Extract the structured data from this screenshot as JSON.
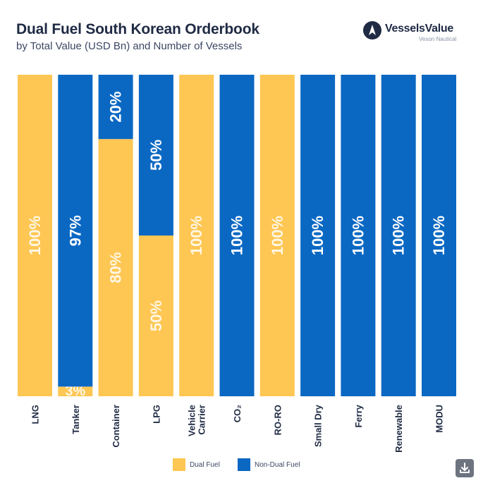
{
  "header": {
    "title": "Dual Fuel South Korean Orderbook",
    "subtitle": "by Total Value (USD Bn) and Number of Vessels"
  },
  "logo": {
    "name": "VesselsValue",
    "sub": "Veson Nautical"
  },
  "colors": {
    "dual_fuel": "#FEC653",
    "non_dual_fuel": "#0A68C3",
    "label_on_dual": "#FFF7E4",
    "label_on_non_dual": "#FFFFFF"
  },
  "legend": {
    "dual_fuel": "Dual Fuel",
    "non_dual_fuel": "Non-Dual Fuel"
  },
  "chart_data": {
    "type": "bar",
    "stacked": true,
    "orientation": "vertical",
    "title": "Dual Fuel South Korean Orderbook",
    "subtitle": "by Total Value (USD Bn) and Number of Vessels",
    "categories": [
      "LNG",
      "Tanker",
      "Container",
      "LPG",
      "Vehicle Carrier",
      "CO₂",
      "RO-RO",
      "Small Dry",
      "Ferry",
      "Renewable",
      "MODU"
    ],
    "category_label_lines": [
      [
        "LNG"
      ],
      [
        "Tanker"
      ],
      [
        "Container"
      ],
      [
        "LPG"
      ],
      [
        "Vehicle",
        "Carrier"
      ],
      [
        "CO₂"
      ],
      [
        "RO-RO"
      ],
      [
        "Small Dry"
      ],
      [
        "Ferry"
      ],
      [
        "Renewable"
      ],
      [
        "MODU"
      ]
    ],
    "series": [
      {
        "name": "Dual Fuel",
        "values": [
          100,
          3,
          80,
          50,
          100,
          0,
          100,
          0,
          0,
          0,
          0
        ]
      },
      {
        "name": "Non-Dual Fuel",
        "values": [
          0,
          97,
          20,
          50,
          0,
          100,
          0,
          100,
          100,
          100,
          100
        ]
      }
    ],
    "data_labels": [
      [
        "100%",
        "3%",
        "80%",
        "50%",
        "100%",
        "",
        "100%",
        "",
        "",
        "",
        ""
      ],
      [
        "",
        "97%",
        "20%",
        "50%",
        "",
        "100%",
        "",
        "100%",
        "100%",
        "100%",
        "100%"
      ]
    ],
    "ylim": [
      0,
      100
    ],
    "xlabel": "",
    "ylabel": "",
    "grid": false,
    "legend_position": "bottom"
  }
}
